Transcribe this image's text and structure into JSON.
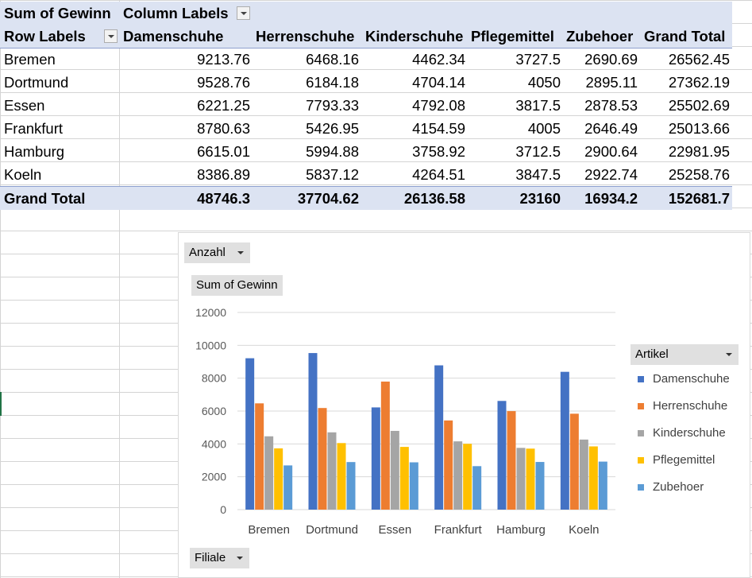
{
  "pivot": {
    "title_cell": "Sum of Gewinn",
    "column_labels": "Column Labels",
    "row_labels": "Row Labels",
    "columns": [
      "Damenschuhe",
      "Herrenschuhe",
      "Kinderschuhe",
      "Pflegemittel",
      "Zubehoer",
      "Grand Total"
    ],
    "rows": [
      {
        "label": "Bremen",
        "values": [
          "9213.76",
          "6468.16",
          "4462.34",
          "3727.5",
          "2690.69",
          "26562.45"
        ]
      },
      {
        "label": "Dortmund",
        "values": [
          "9528.76",
          "6184.18",
          "4704.14",
          "4050",
          "2895.11",
          "27362.19"
        ]
      },
      {
        "label": "Essen",
        "values": [
          "6221.25",
          "7793.33",
          "4792.08",
          "3817.5",
          "2878.53",
          "25502.69"
        ]
      },
      {
        "label": "Frankfurt",
        "values": [
          "8780.63",
          "5426.95",
          "4154.59",
          "4005",
          "2646.49",
          "25013.66"
        ]
      },
      {
        "label": "Hamburg",
        "values": [
          "6615.01",
          "5994.88",
          "3758.92",
          "3712.5",
          "2900.64",
          "22981.95"
        ]
      },
      {
        "label": "Koeln",
        "values": [
          "8386.89",
          "5837.12",
          "4264.51",
          "3847.5",
          "2922.74",
          "25258.76"
        ]
      }
    ],
    "total": {
      "label": "Grand Total",
      "values": [
        "48746.3",
        "37704.62",
        "26136.58",
        "23160",
        "16934.2",
        "152681.7"
      ]
    }
  },
  "chart": {
    "value_button": "Anzahl",
    "series_title_button": "Sum of Gewinn",
    "legend_button": "Artikel",
    "axis_button": "Filiale"
  },
  "chart_data": {
    "type": "bar",
    "categories": [
      "Bremen",
      "Dortmund",
      "Essen",
      "Frankfurt",
      "Hamburg",
      "Koeln"
    ],
    "series": [
      {
        "name": "Damenschuhe",
        "color": "#4472c4",
        "values": [
          9213.76,
          9528.76,
          6221.25,
          8780.63,
          6615.01,
          8386.89
        ]
      },
      {
        "name": "Herrenschuhe",
        "color": "#ed7d31",
        "values": [
          6468.16,
          6184.18,
          7793.33,
          5426.95,
          5994.88,
          5837.12
        ]
      },
      {
        "name": "Kinderschuhe",
        "color": "#a5a5a5",
        "values": [
          4462.34,
          4704.14,
          4792.08,
          4154.59,
          3758.92,
          4264.51
        ]
      },
      {
        "name": "Pflegemittel",
        "color": "#ffc000",
        "values": [
          3727.5,
          4050,
          3817.5,
          4005,
          3712.5,
          3847.5
        ]
      },
      {
        "name": "Zubehoer",
        "color": "#5b9bd5",
        "values": [
          2690.69,
          2895.11,
          2878.53,
          2646.49,
          2900.64,
          2922.74
        ]
      }
    ],
    "yticks": [
      "0",
      "2000",
      "4000",
      "6000",
      "8000",
      "10000",
      "12000"
    ],
    "ylim": [
      0,
      12000
    ],
    "grid": true,
    "legend_position": "right"
  }
}
